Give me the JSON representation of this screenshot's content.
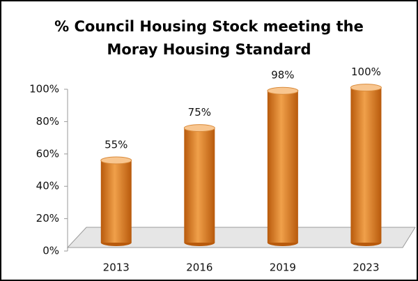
{
  "chart_data": {
    "type": "bar3d",
    "title": "% Council Housing Stock meeting the Moray Housing Standard",
    "categories": [
      "2013",
      "2016",
      "2019",
      "2023"
    ],
    "values": [
      55,
      75,
      98,
      100
    ],
    "value_labels": [
      "55%",
      "75%",
      "98%",
      "100%"
    ],
    "color": "#f0a04a",
    "ylim": [
      0,
      100
    ],
    "yticks": [
      {
        "value": 0,
        "label": "0%"
      },
      {
        "value": 20,
        "label": "20%"
      },
      {
        "value": 40,
        "label": "40%"
      },
      {
        "value": 60,
        "label": "60%"
      },
      {
        "value": 80,
        "label": "80%"
      },
      {
        "value": 100,
        "label": "100%"
      }
    ]
  }
}
